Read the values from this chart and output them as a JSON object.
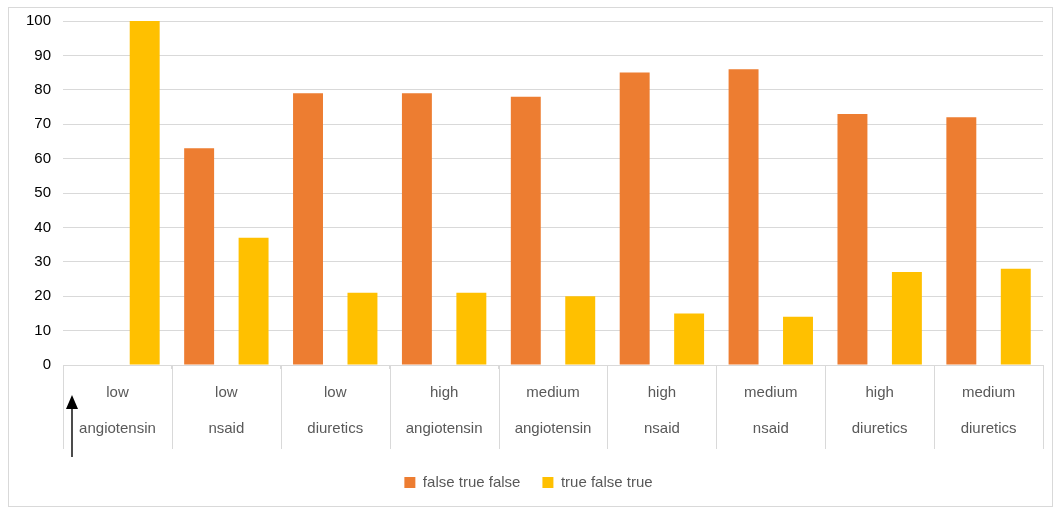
{
  "chart_data": {
    "type": "bar",
    "categories": [
      "low\nangiotensin",
      "low\nnsaid",
      "low\ndiuretics",
      "high\nangiotensin",
      "medium\nangiotensin",
      "high\nnsaid",
      "medium\nnsaid",
      "high\ndiuretics",
      "medium\ndiuretics"
    ],
    "series": [
      {
        "name": "false true false",
        "color": "#ed7d31",
        "values": [
          0,
          63,
          79,
          79,
          78,
          85,
          86,
          73,
          72
        ]
      },
      {
        "name": "true false true",
        "color": "#ffc000",
        "values": [
          100,
          37,
          21,
          21,
          20,
          15,
          14,
          27,
          28
        ]
      }
    ],
    "ylim": [
      0,
      100
    ],
    "yticks": [
      0,
      10,
      20,
      30,
      40,
      50,
      60,
      70,
      80,
      90,
      100
    ],
    "grid": "y",
    "legend": "bottom"
  }
}
